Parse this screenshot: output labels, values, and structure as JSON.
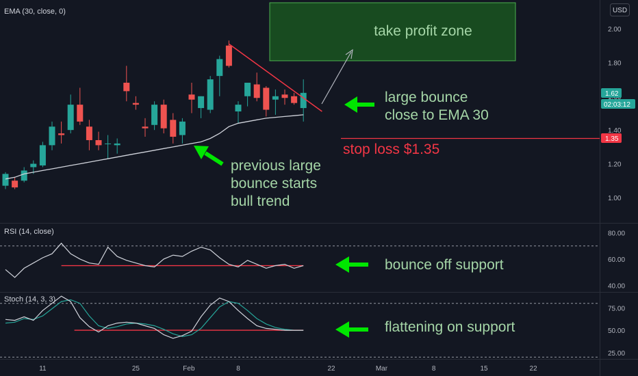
{
  "colors": {
    "background": "#131722",
    "grid": "#1e222d",
    "up": "#26a69a",
    "down": "#ef5350",
    "ema": "#d1d4dc",
    "text": "#b2b5be",
    "annotation": "#a5d6a7",
    "arrow_green": "#00e600",
    "stop_red": "#f23645",
    "tp_fill": "#1b5e20",
    "tp_border": "#4caf50"
  },
  "header": {
    "indicator_main": "EMA (30, close, 0)",
    "currency": "USD"
  },
  "price_badges": {
    "last_price": "1.62",
    "countdown": "02:03:12",
    "stop_price": "1.35"
  },
  "annotations": {
    "take_profit": "take profit zone",
    "bounce_line1": "large bounce",
    "bounce_line2": "close to EMA 30",
    "stop_loss": "stop loss $1.35",
    "previous_line1": "previous large",
    "previous_line2": "bounce starts",
    "previous_line3": "bull trend",
    "rsi_note": "bounce off support",
    "stoch_note": "flattening on support"
  },
  "x_axis_labels": [
    "11",
    "25",
    "Feb",
    "8",
    "22",
    "Mar",
    "8",
    "15",
    "22"
  ],
  "chart_data": [
    {
      "type": "candlestick",
      "title": "EMA (30, close, 0)",
      "y_ticks": [
        "2.00",
        "1.80",
        "1.60",
        "1.40",
        "1.20",
        "1.00"
      ],
      "ylim": [
        0.85,
        2.17
      ],
      "grid": false,
      "candles": [
        {
          "o": 1.07,
          "h": 1.15,
          "l": 1.05,
          "c": 1.14
        },
        {
          "o": 1.1,
          "h": 1.12,
          "l": 1.05,
          "c": 1.06
        },
        {
          "o": 1.1,
          "h": 1.18,
          "l": 1.09,
          "c": 1.16
        },
        {
          "o": 1.18,
          "h": 1.22,
          "l": 1.14,
          "c": 1.2
        },
        {
          "o": 1.19,
          "h": 1.33,
          "l": 1.18,
          "c": 1.31
        },
        {
          "o": 1.31,
          "h": 1.45,
          "l": 1.28,
          "c": 1.42
        },
        {
          "o": 1.38,
          "h": 1.45,
          "l": 1.32,
          "c": 1.37
        },
        {
          "o": 1.4,
          "h": 1.61,
          "l": 1.38,
          "c": 1.55
        },
        {
          "o": 1.55,
          "h": 1.65,
          "l": 1.43,
          "c": 1.45
        },
        {
          "o": 1.42,
          "h": 1.46,
          "l": 1.28,
          "c": 1.34
        },
        {
          "o": 1.34,
          "h": 1.39,
          "l": 1.28,
          "c": 1.31
        },
        {
          "o": 1.32,
          "h": 1.37,
          "l": 1.23,
          "c": 1.32
        },
        {
          "o": 1.31,
          "h": 1.35,
          "l": 1.26,
          "c": 1.32
        },
        {
          "o": 1.68,
          "h": 1.78,
          "l": 1.57,
          "c": 1.63
        },
        {
          "o": 1.56,
          "h": 1.6,
          "l": 1.52,
          "c": 1.55
        },
        {
          "o": 1.42,
          "h": 1.47,
          "l": 1.36,
          "c": 1.41
        },
        {
          "o": 1.43,
          "h": 1.57,
          "l": 1.4,
          "c": 1.55
        },
        {
          "o": 1.55,
          "h": 1.58,
          "l": 1.38,
          "c": 1.41
        },
        {
          "o": 1.46,
          "h": 1.5,
          "l": 1.32,
          "c": 1.36
        },
        {
          "o": 1.37,
          "h": 1.47,
          "l": 1.32,
          "c": 1.45
        },
        {
          "o": 1.61,
          "h": 1.68,
          "l": 1.5,
          "c": 1.58
        },
        {
          "o": 1.53,
          "h": 1.6,
          "l": 1.47,
          "c": 1.6
        },
        {
          "o": 1.52,
          "h": 1.72,
          "l": 1.5,
          "c": 1.7
        },
        {
          "o": 1.72,
          "h": 1.84,
          "l": 1.6,
          "c": 1.82
        },
        {
          "o": 1.9,
          "h": 1.93,
          "l": 1.77,
          "c": 1.78
        },
        {
          "o": 1.51,
          "h": 1.57,
          "l": 1.44,
          "c": 1.55
        },
        {
          "o": 1.6,
          "h": 1.67,
          "l": 1.54,
          "c": 1.68
        },
        {
          "o": 1.67,
          "h": 1.74,
          "l": 1.57,
          "c": 1.59
        },
        {
          "o": 1.65,
          "h": 1.66,
          "l": 1.48,
          "c": 1.52
        },
        {
          "o": 1.58,
          "h": 1.64,
          "l": 1.49,
          "c": 1.6
        },
        {
          "o": 1.61,
          "h": 1.64,
          "l": 1.55,
          "c": 1.59
        },
        {
          "o": 1.6,
          "h": 1.62,
          "l": 1.55,
          "c": 1.56
        },
        {
          "o": 1.53,
          "h": 1.7,
          "l": 1.45,
          "c": 1.62
        }
      ],
      "ema": [
        1.11,
        1.12,
        1.14,
        1.15,
        1.16,
        1.17,
        1.18,
        1.19,
        1.2,
        1.21,
        1.22,
        1.23,
        1.24,
        1.25,
        1.26,
        1.27,
        1.28,
        1.29,
        1.3,
        1.31,
        1.32,
        1.33,
        1.35,
        1.38,
        1.42,
        1.44,
        1.45,
        1.46,
        1.47,
        1.475,
        1.48,
        1.485,
        1.49
      ],
      "resistance_line": {
        "from": [
          24,
          1.91
        ],
        "to": [
          34,
          1.51
        ]
      },
      "stop_line": 1.35,
      "take_profit_zone": [
        1.81,
        2.18
      ]
    },
    {
      "type": "line",
      "title": "RSI (14, close)",
      "y_ticks": [
        "80.00",
        "60.00",
        "40.00"
      ],
      "ylim": [
        35,
        87
      ],
      "upper_band": 70,
      "values": [
        52,
        46,
        53,
        57,
        61,
        64,
        72,
        64,
        60,
        57,
        56,
        69,
        62,
        59,
        57,
        55,
        54,
        60,
        63,
        62,
        66,
        69,
        67,
        61,
        56,
        54,
        59,
        56,
        53,
        55,
        56,
        53,
        55
      ],
      "support": 55
    },
    {
      "type": "line",
      "title": "Stoch (14, 3, 3)",
      "y_ticks": [
        "75.00",
        "50.00",
        "25.00"
      ],
      "ylim": [
        18,
        92
      ],
      "bands": [
        80,
        20
      ],
      "k": [
        62,
        61,
        65,
        61,
        72,
        80,
        88,
        82,
        64,
        54,
        48,
        55,
        58,
        59,
        58,
        55,
        52,
        45,
        41,
        44,
        49,
        65,
        78,
        86,
        82,
        72,
        63,
        55,
        52,
        51,
        50,
        50,
        50
      ],
      "d": [
        58,
        59,
        63,
        62,
        66,
        74,
        82,
        84,
        80,
        66,
        55,
        52,
        54,
        57,
        58,
        57,
        55,
        51,
        46,
        43,
        45,
        52,
        64,
        76,
        82,
        80,
        72,
        63,
        57,
        53,
        51,
        50,
        50
      ],
      "support": 50
    }
  ]
}
